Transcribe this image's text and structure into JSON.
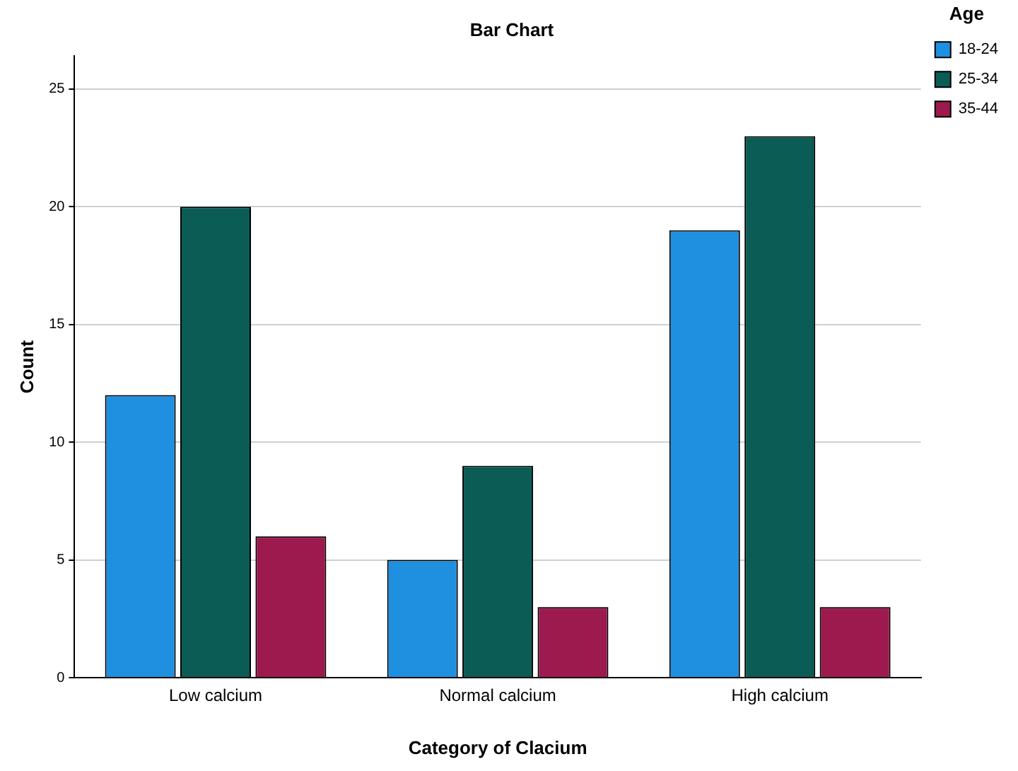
{
  "chart_data": {
    "type": "bar",
    "title": "Bar Chart",
    "xlabel": "Category of Clacium",
    "ylabel": "Count",
    "legend_title": "Age",
    "categories": [
      "Low calcium",
      "Normal calcium",
      "High calcium"
    ],
    "series": [
      {
        "name": "18-24",
        "color": "#1f8fe0",
        "values": [
          12,
          5,
          19
        ]
      },
      {
        "name": "25-34",
        "color": "#0b5c55",
        "values": [
          20,
          9,
          23
        ]
      },
      {
        "name": "35-44",
        "color": "#9c1a4e",
        "values": [
          6,
          3,
          3
        ]
      }
    ],
    "ylim": [
      0,
      26.4
    ],
    "yticks": [
      0,
      5,
      10,
      15,
      20,
      25
    ],
    "grid": "y",
    "legend": "top right"
  }
}
